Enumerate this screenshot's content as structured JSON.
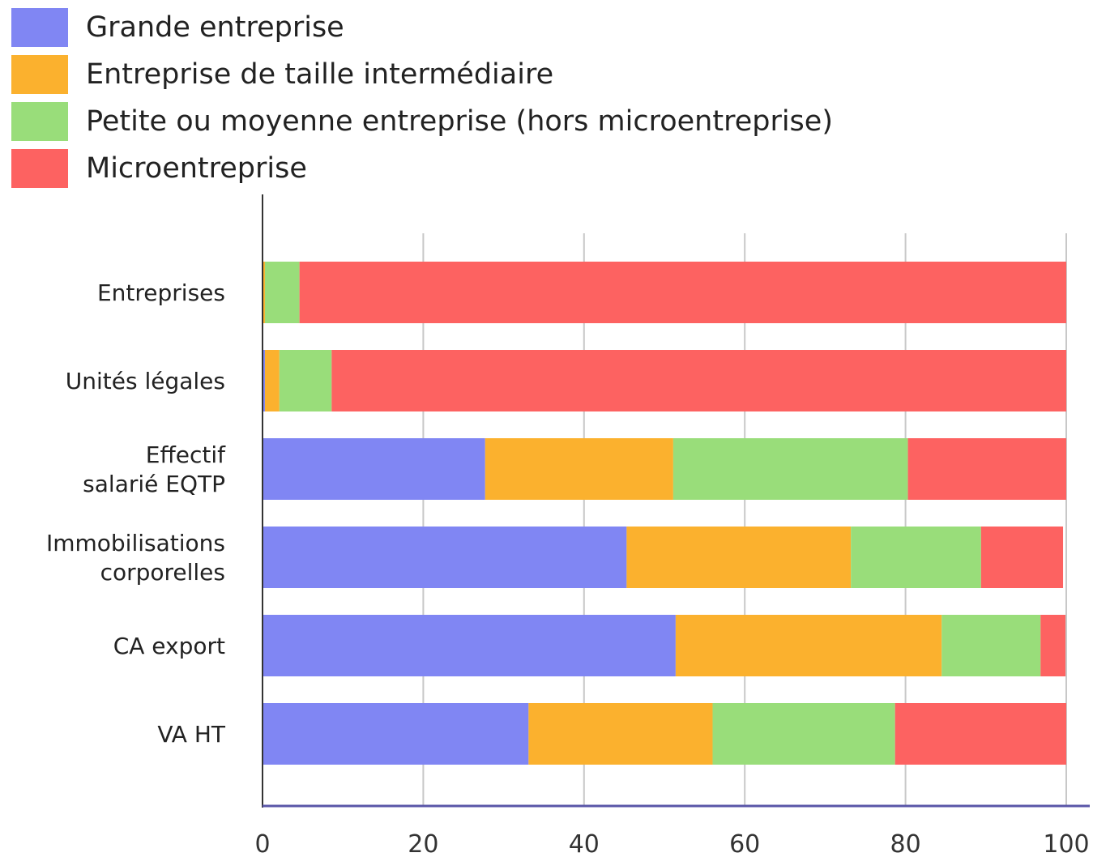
{
  "chart_data": {
    "type": "bar",
    "orientation": "horizontal",
    "stacked": true,
    "categories": [
      [
        "Entreprises"
      ],
      [
        "Unités légales"
      ],
      [
        "Effectif",
        "salarié EQTP"
      ],
      [
        "Immobilisations",
        "corporelles"
      ],
      [
        "CA export"
      ],
      [
        "VA HT"
      ]
    ],
    "series": [
      {
        "name": "Grande entreprise",
        "color": "#8086f3",
        "values": [
          0.1,
          0.3,
          27.7,
          45.3,
          51.4,
          33.1
        ]
      },
      {
        "name": "Entreprise de taille intermédiaire",
        "color": "#fbb12e",
        "values": [
          0.2,
          1.8,
          23.4,
          27.9,
          33.1,
          22.9
        ]
      },
      {
        "name": "Petite ou moyenne entreprise (hors microentreprise)",
        "color": "#99dd7a",
        "values": [
          4.3,
          6.5,
          29.2,
          16.2,
          12.3,
          22.7
        ]
      },
      {
        "name": "Microentreprise",
        "color": "#fd6261",
        "values": [
          95.4,
          91.4,
          19.7,
          10.2,
          3.1,
          21.3
        ]
      }
    ],
    "xlim": [
      0,
      100
    ],
    "xticks": [
      0,
      20,
      40,
      60,
      80,
      100
    ],
    "grid": true,
    "legend_position": "top-left",
    "title": "",
    "xlabel": "",
    "ylabel": ""
  }
}
